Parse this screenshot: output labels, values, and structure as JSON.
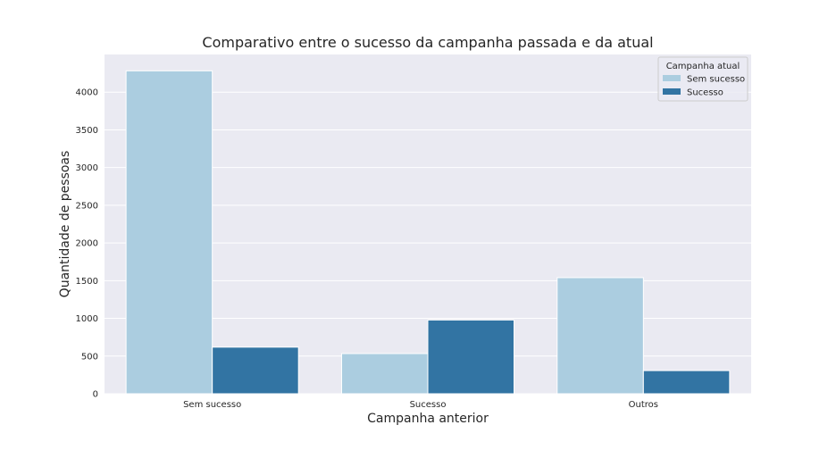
{
  "chart_data": {
    "type": "bar",
    "title": "Comparativo entre o sucesso da campanha passada e da atual",
    "xlabel": "Campanha anterior",
    "ylabel": "Quantidade de pessoas",
    "categories": [
      "Sem sucesso",
      "Sucesso",
      "Outros"
    ],
    "series": [
      {
        "name": "Sem sucesso",
        "color": "#abcde0",
        "values": [
          4283,
          533,
          1540
        ]
      },
      {
        "name": "Sucesso",
        "color": "#3274a3",
        "values": [
          618,
          978,
          307
        ]
      }
    ],
    "ylim": [
      0,
      4500
    ],
    "yticks": [
      0,
      500,
      1000,
      1500,
      2000,
      2500,
      3000,
      3500,
      4000
    ],
    "grid": true,
    "legend": {
      "title": "Campanha atual",
      "placement": "top-right"
    },
    "colors": {
      "background": "#eaeaf2",
      "grid": "#ffffff",
      "text": "#262626"
    }
  }
}
